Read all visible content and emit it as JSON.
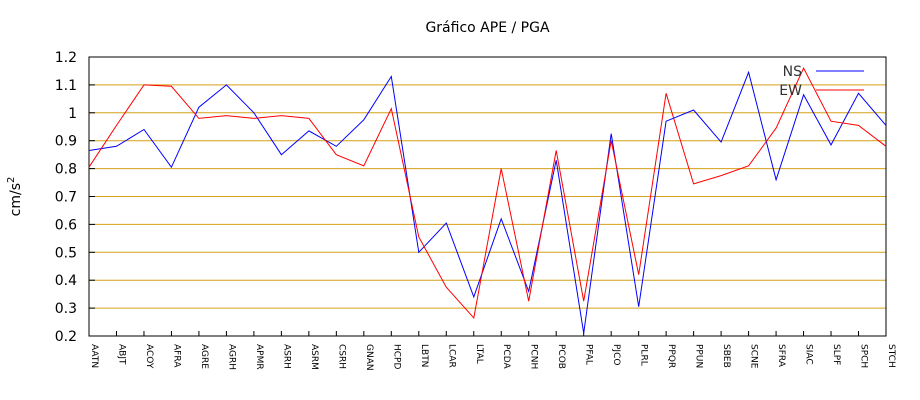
{
  "chart_data": {
    "type": "line",
    "title": "Gráfico  APE / PGA",
    "xlabel": "",
    "ylabel": "cm/s",
    "ylabel_sup": "2",
    "ylim": [
      0.2,
      1.2
    ],
    "yticks": [
      "0.2",
      "0.3",
      "0.4",
      "0.5",
      "0.6",
      "0.7",
      "0.8",
      "0.9",
      "1",
      "1.1",
      "1.2"
    ],
    "grid": "horizontal",
    "legend_position": "top-right",
    "categories": [
      "AATN",
      "ABJT",
      "ACOY",
      "AFRA",
      "AGRE",
      "AGRH",
      "APMR",
      "ASRH",
      "ASRM",
      "CSRH",
      "GNAN",
      "HCPD",
      "LBTN",
      "LCAR",
      "LTAL",
      "PCDA",
      "PCNH",
      "PCOB",
      "PFAL",
      "PJCO",
      "PLRL",
      "PPQR",
      "PPUN",
      "SBEB",
      "SCNE",
      "SFRA",
      "SIAC",
      "SLPF",
      "SPCH",
      "STCH"
    ],
    "series": [
      {
        "name": "NS",
        "color": "#0000ff",
        "values": [
          0.865,
          0.88,
          0.94,
          0.805,
          1.02,
          1.1,
          1.0,
          0.85,
          0.935,
          0.88,
          0.975,
          1.13,
          0.5,
          0.605,
          0.34,
          0.62,
          0.36,
          0.83,
          0.21,
          0.925,
          0.305,
          0.97,
          1.01,
          0.895,
          1.145,
          0.76,
          1.065,
          0.885,
          1.07,
          0.955
        ]
      },
      {
        "name": "EW",
        "color": "#ff0000",
        "values": [
          0.805,
          0.955,
          1.1,
          1.095,
          0.98,
          0.99,
          0.98,
          0.99,
          0.98,
          0.85,
          0.81,
          1.015,
          0.555,
          0.375,
          0.265,
          0.8,
          0.325,
          0.865,
          0.325,
          0.9,
          0.42,
          1.07,
          0.745,
          0.775,
          0.81,
          0.945,
          1.16,
          0.97,
          0.955,
          0.88
        ]
      }
    ],
    "colors": {
      "grid": "#d4a017",
      "axis": "#000000"
    }
  }
}
